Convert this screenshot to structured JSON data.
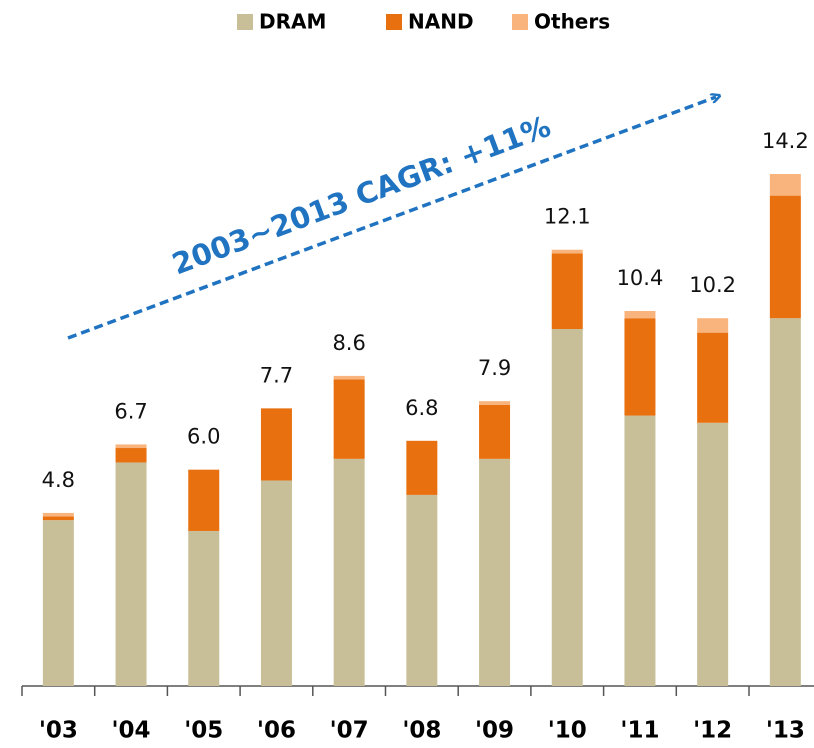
{
  "chart_data": {
    "type": "stacked-bar",
    "annotation": "2003~2013 CAGR: +11%",
    "categories": [
      "'03",
      "'04",
      "'05",
      "'06",
      "'07",
      "'08",
      "'09",
      "'10",
      "'11",
      "'12",
      "'13"
    ],
    "series": [
      {
        "name": "DRAM",
        "color": "#c8bf98",
        "values": [
          4.6,
          6.2,
          4.3,
          5.7,
          6.3,
          5.3,
          6.3,
          9.9,
          7.5,
          7.3,
          10.2
        ]
      },
      {
        "name": "NAND",
        "color": "#e8700f",
        "values": [
          0.1,
          0.4,
          1.7,
          2.0,
          2.2,
          1.5,
          1.5,
          2.1,
          2.7,
          2.5,
          3.4
        ]
      },
      {
        "name": "Others",
        "color": "#f8b47c",
        "values": [
          0.1,
          0.1,
          0,
          0,
          0.1,
          0,
          0.1,
          0.1,
          0.2,
          0.4,
          0.6
        ]
      }
    ],
    "totals": [
      4.8,
      6.7,
      6.0,
      7.7,
      8.6,
      6.8,
      7.9,
      12.1,
      10.4,
      10.2,
      14.2
    ],
    "value_labels": [
      "4.8",
      "6.7",
      "6.0",
      "7.7",
      "8.6",
      "6.8",
      "7.9",
      "12.1",
      "10.4",
      "10.2",
      "14.2"
    ],
    "legend": "top"
  }
}
